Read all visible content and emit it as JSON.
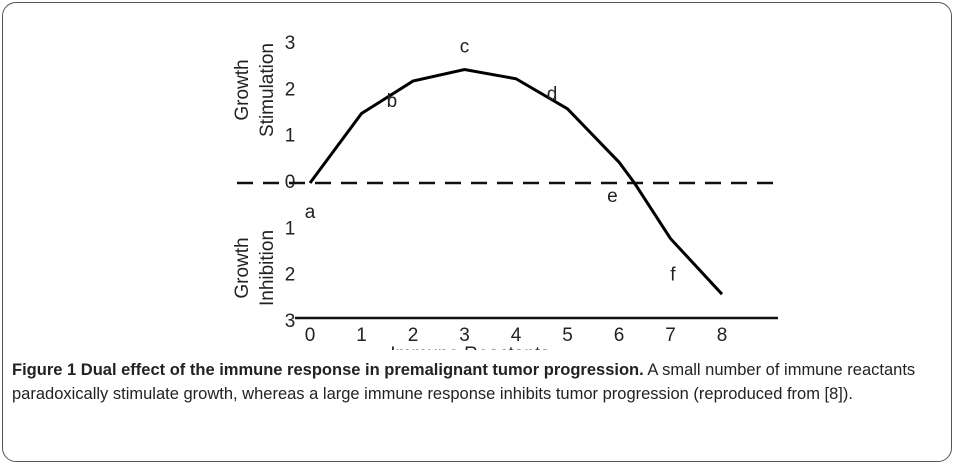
{
  "chart_data": {
    "type": "line",
    "ylabel_upper": [
      "Growth",
      "Stimulation"
    ],
    "ylabel_lower": [
      "Growth",
      "Inhibition"
    ],
    "xlabel": "Immune Reactants",
    "x": [
      0,
      1,
      2,
      3,
      4,
      5,
      6,
      6.3,
      7,
      8
    ],
    "series": [
      {
        "color": "#000000",
        "values": [
          0,
          1.5,
          2.2,
          2.45,
          2.25,
          1.6,
          0.45,
          0,
          -1.2,
          -2.4
        ]
      }
    ],
    "annotations": [
      {
        "text": "a",
        "x": 0
      },
      {
        "text": "b",
        "x": 1.3
      },
      {
        "text": "c",
        "x": 3
      },
      {
        "text": "d",
        "x": 4.7
      },
      {
        "text": "e",
        "x": 6.3
      },
      {
        "text": "f",
        "x": 7.3
      }
    ],
    "xlim": [
      0,
      8
    ],
    "ylim": [
      -3,
      3
    ],
    "xticks": [
      0,
      1,
      2,
      3,
      4,
      5,
      6,
      7,
      8
    ],
    "yticks": [
      {
        "value": -3,
        "label": "3"
      },
      {
        "value": -2,
        "label": "2"
      },
      {
        "value": -1,
        "label": "1"
      },
      0,
      1,
      2,
      3
    ]
  },
  "caption": {
    "label": "Figure 1",
    "title": "Dual effect of the immune response in premalignant tumor progression.",
    "text": "A small number of immune reactants paradoxically stimulate growth, whereas a large immune response inhibits tumor progression (reproduced from [8])."
  }
}
